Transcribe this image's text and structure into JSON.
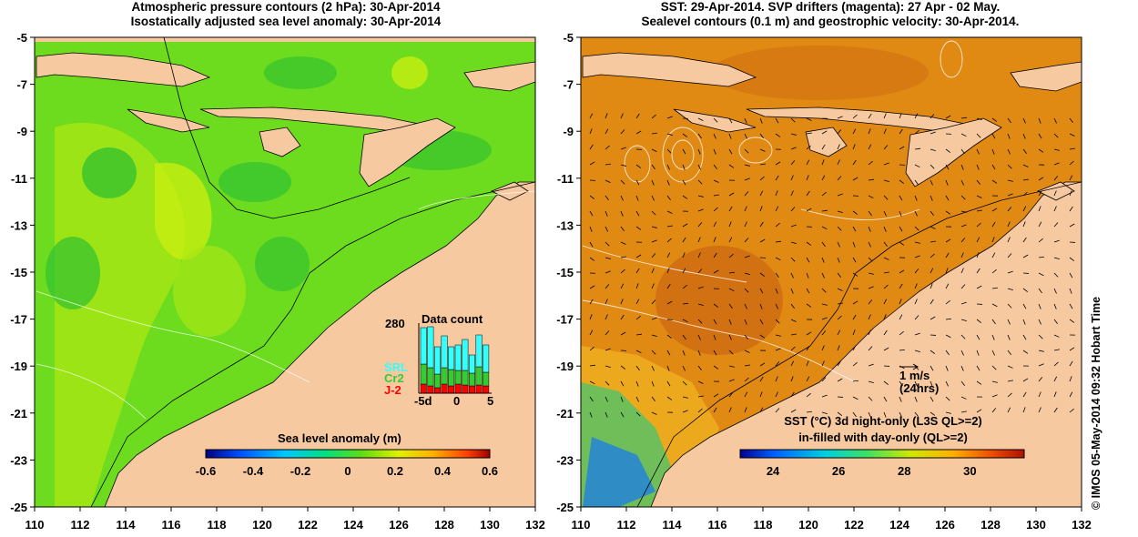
{
  "left_panel": {
    "title_line1": "Atmospheric pressure contours (2 hPa): 30-Apr-2014",
    "title_line2": "Isostatically adjusted sea level anomaly: 30-Apr-2014",
    "colorbar_label": "Sea level anomaly (m)",
    "colorbar_ticks": [
      "-0.6",
      "-0.4",
      "-0.2",
      "0",
      "0.2",
      "0.4",
      "0.6"
    ],
    "inset": {
      "title": "Data count",
      "ymax_label": "280",
      "x_ticks": [
        "-5d",
        "0",
        "5"
      ],
      "series_labels": [
        "SRL",
        "Cr2",
        "J-2"
      ],
      "colors": {
        "SRL": "#33ffff",
        "Cr2": "#33cc33",
        "J-2": "#ff0000"
      }
    }
  },
  "right_panel": {
    "title_line1": "SST: 29-Apr-2014. SVP drifters (magenta): 27 Apr - 02 May.",
    "title_line2": "Sealevel contours (0.1 m) and geostrophic velocity: 30-Apr-2014.",
    "vector_scale": "1 m/s",
    "vector_scale_note": "(24hrs)",
    "colorbar_label1": "SST (°C)  3d night-only (L3S QL>=2)",
    "colorbar_label2": "in-filled with day-only (QL>=2)",
    "colorbar_ticks": [
      "24",
      "26",
      "28",
      "30"
    ]
  },
  "axes": {
    "lon_ticks": [
      "110",
      "112",
      "114",
      "116",
      "118",
      "120",
      "122",
      "124",
      "126",
      "128",
      "130",
      "132"
    ],
    "lat_ticks": [
      "-5",
      "-7",
      "-9",
      "-11",
      "-13",
      "-15",
      "-17",
      "-19",
      "-21",
      "-23",
      "-25"
    ]
  },
  "credit": "© IMOS 05-May-2014 09:32 Hobart Time",
  "colors": {
    "land": "#f7c9a0",
    "sla_base": "#6ddc1e",
    "sst_base": "#e08a14"
  }
}
